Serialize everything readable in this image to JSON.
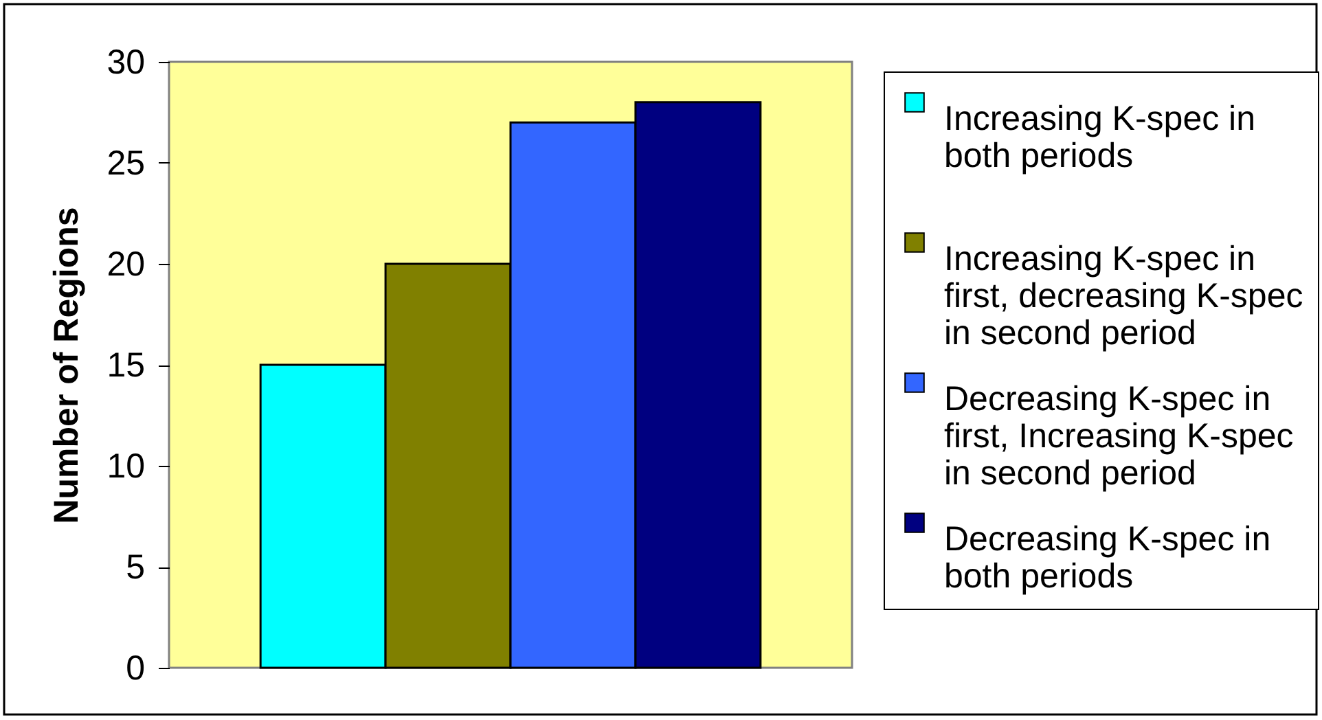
{
  "chart_data": {
    "type": "bar",
    "ylabel": "Number of Regions",
    "categories": [
      null
    ],
    "series": [
      {
        "name": "Increasing K-spec in both periods",
        "color": "#00ffff",
        "values": [
          15
        ]
      },
      {
        "name": "Increasing K-spec in first, decreasing K-spec in second period",
        "color": "#808000",
        "values": [
          20
        ]
      },
      {
        "name": "Decreasing K-spec in first, Increasing K-spec in second period",
        "color": "#3366ff",
        "values": [
          27
        ]
      },
      {
        "name": "Decreasing K-spec in both periods",
        "color": "#000080",
        "values": [
          28
        ]
      }
    ],
    "ylim": [
      0,
      30
    ],
    "yticks": [
      0,
      5,
      10,
      15,
      20,
      25,
      30
    ],
    "grid": false,
    "legend": "right",
    "tick_labels": "y"
  }
}
